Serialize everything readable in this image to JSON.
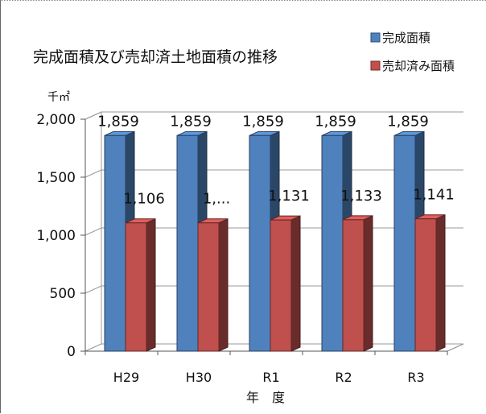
{
  "chart_data": {
    "type": "bar",
    "title": "完成面積及び売却済土地面積の推移",
    "ylabel": "千㎡",
    "xlabel": "年　度",
    "ylim": [
      0,
      2000
    ],
    "yticks": [
      "0",
      "500",
      "1,000",
      "1,500",
      "2,000"
    ],
    "categories": [
      "H29",
      "H30",
      "R1",
      "R2",
      "R3"
    ],
    "grid": true,
    "legend_position": "top-right",
    "series": [
      {
        "name": "完成面積",
        "color": "#4f81bd",
        "values": [
          1859,
          1859,
          1859,
          1859,
          1859
        ],
        "labels": [
          "1,859",
          "1,859",
          "1,859",
          "1,859",
          "1,859"
        ]
      },
      {
        "name": "売却済み面積",
        "color": "#c0504d",
        "values": [
          1106,
          1106,
          1131,
          1133,
          1141
        ],
        "labels": [
          "1,106",
          "1,...",
          "1,131",
          "1,133",
          "1,141"
        ]
      }
    ]
  }
}
